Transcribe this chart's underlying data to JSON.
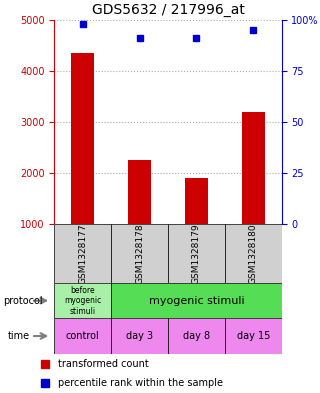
{
  "title": "GDS5632 / 217996_at",
  "samples": [
    "GSM1328177",
    "GSM1328178",
    "GSM1328179",
    "GSM1328180"
  ],
  "transformed_counts": [
    4350,
    2250,
    1900,
    3200
  ],
  "percentile_ranks": [
    98,
    91,
    91,
    95
  ],
  "ylim_left": [
    1000,
    5000
  ],
  "ylim_right": [
    0,
    100
  ],
  "yticks_left": [
    1000,
    2000,
    3000,
    4000,
    5000
  ],
  "yticks_right": [
    0,
    25,
    50,
    75,
    100
  ],
  "ytick_labels_right": [
    "0",
    "25",
    "50",
    "75",
    "100%"
  ],
  "bar_color": "#cc0000",
  "dot_color": "#0000cc",
  "protocol_labels": [
    "before\nmyogenic\nstimuli",
    "myogenic stimuli"
  ],
  "protocol_colors": [
    "#90ee90",
    "#44dd44"
  ],
  "time_labels": [
    "control",
    "day 3",
    "day 8",
    "day 15"
  ],
  "time_color": "#ee88ee",
  "gsm_bg_color": "#d0d0d0",
  "legend_red_label": "transformed count",
  "legend_blue_label": "percentile rank within the sample",
  "left_axis_color": "#cc0000",
  "right_axis_color": "#0000cc",
  "grid_color": "#aaaaaa"
}
